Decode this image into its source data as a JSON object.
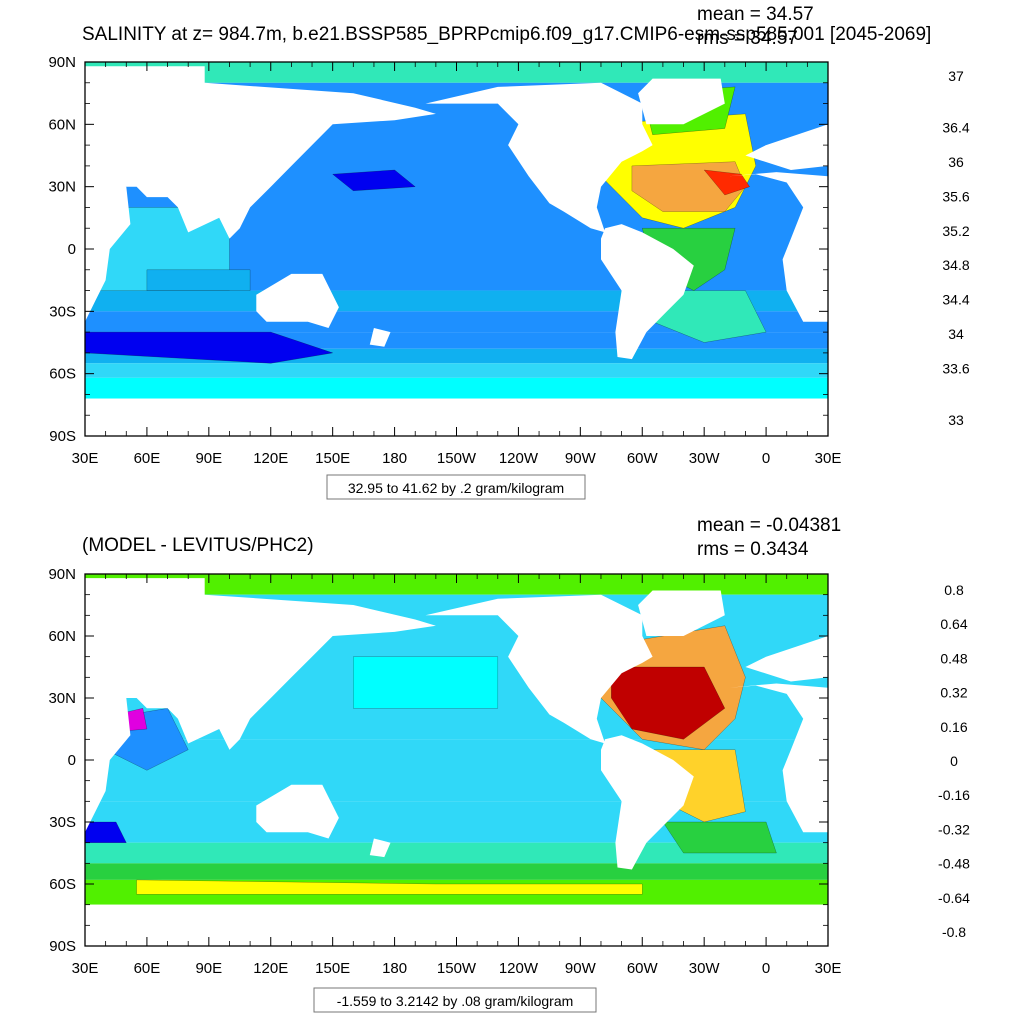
{
  "chart_data": [
    {
      "type": "heatmap",
      "title": "SALINITY at z= 984.7m, b.e21.BSSP585_BPRPcmip6.f09_g17.CMIP6-esm-ssp585.001 [2045-2069]",
      "mean_label": "mean = 34.57",
      "rms_label": "rms = 34.57",
      "x_tick_labels": [
        "30E",
        "60E",
        "90E",
        "120E",
        "150E",
        "180",
        "150W",
        "120W",
        "90W",
        "60W",
        "30W",
        "0",
        "30E"
      ],
      "y_tick_labels": [
        "90N",
        "60N",
        "30N",
        "0",
        "30S",
        "60S",
        "90S"
      ],
      "xlim": [
        30,
        390
      ],
      "ylim": [
        -90,
        90
      ],
      "range_label": "32.95 to 41.62 by .2 gram/kilogram",
      "colorbar": {
        "colors": [
          "#c00000",
          "#e00000",
          "#ff2a00",
          "#ff6a00",
          "#f58a1f",
          "#f5a640",
          "#ffd22a",
          "#ffff00",
          "#51f000",
          "#28d040",
          "#30e8b8",
          "#00ffff",
          "#30d8f8",
          "#10b0f0",
          "#1e90ff",
          "#0000f0",
          "#9020e0",
          "#e000e0",
          "#d0d0d0",
          "#707070"
        ],
        "labels": [
          "37",
          "36.4",
          "36",
          "35.6",
          "35.2",
          "34.8",
          "34.4",
          "34",
          "33.6",
          "33"
        ],
        "label_slots": [
          0,
          3,
          5,
          7,
          9,
          11,
          13,
          15,
          17,
          20
        ]
      }
    },
    {
      "type": "heatmap",
      "title": "(MODEL - LEVITUS/PHC2)",
      "mean_label": "mean = -0.04381",
      "rms_label": "rms = 0.3434",
      "x_tick_labels": [
        "30E",
        "60E",
        "90E",
        "120E",
        "150E",
        "180",
        "150W",
        "120W",
        "90W",
        "60W",
        "30W",
        "0",
        "30E"
      ],
      "y_tick_labels": [
        "90N",
        "60N",
        "30N",
        "0",
        "30S",
        "60S",
        "90S"
      ],
      "xlim": [
        30,
        390
      ],
      "ylim": [
        -90,
        90
      ],
      "range_label": "-1.559 to 3.2142 by .08 gram/kilogram",
      "colorbar": {
        "colors": [
          "#c00000",
          "#e00000",
          "#ff2a00",
          "#ff6a00",
          "#f58a1f",
          "#f5a640",
          "#ffd22a",
          "#ffff00",
          "#51f000",
          "#28d040",
          "#30e8b8",
          "#00ffff",
          "#30d8f8",
          "#10b0f0",
          "#1e90ff",
          "#0000f0",
          "#9020e0",
          "#e000e0",
          "#d0d0d0",
          "#707070"
        ],
        "labels": [
          "0.8",
          "0.64",
          "0.48",
          "0.32",
          "0.16",
          "0",
          "-0.16",
          "-0.32",
          "-0.48",
          "-0.64",
          "-0.8"
        ],
        "label_slots": [
          0,
          2,
          4,
          6,
          8,
          10,
          12,
          14,
          16,
          18,
          20
        ]
      }
    }
  ]
}
